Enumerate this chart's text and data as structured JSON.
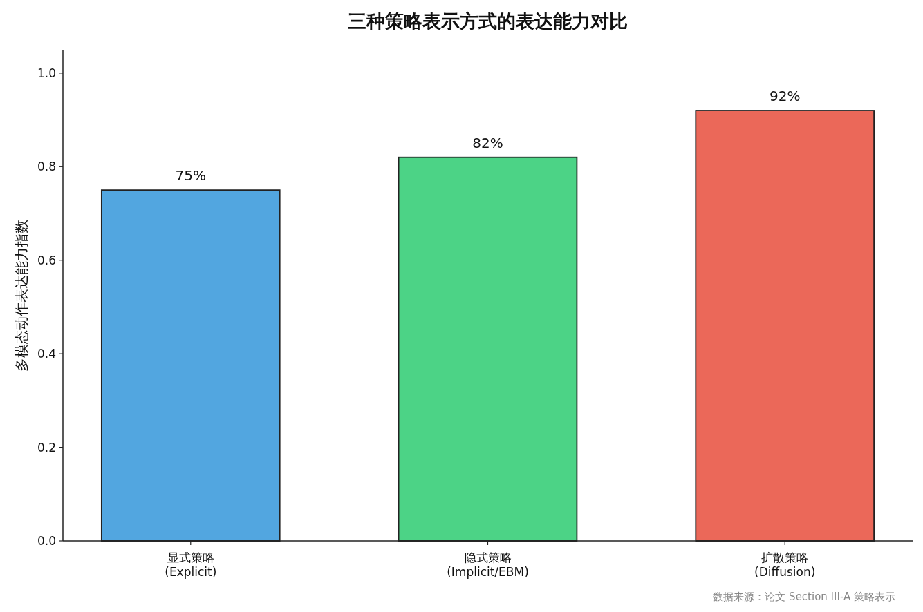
{
  "chart_data": {
    "type": "bar",
    "title": "三种策略表示方式的表达能力对比",
    "ylabel": "多模态动作表达能力指数",
    "categories": [
      "显式策略\n(Explicit)",
      "隐式策略\n(Implicit/EBM)",
      "扩散策略\n(Diffusion)"
    ],
    "values": [
      0.75,
      0.82,
      0.92
    ],
    "colors": [
      "#52a6e0",
      "#4cd386",
      "#eb6859"
    ],
    "value_labels": [
      "75%",
      "82%",
      "92%"
    ],
    "ylim": [
      0,
      1.05
    ],
    "yticks": [
      {
        "value": 0,
        "label": "0.0"
      },
      {
        "value": 0.2,
        "label": "0.2"
      },
      {
        "value": 0.4,
        "label": "0.4"
      },
      {
        "value": 0.6,
        "label": "0.6"
      },
      {
        "value": 0.8,
        "label": "0.8"
      },
      {
        "value": 1,
        "label": "1.0"
      }
    ],
    "grid": false,
    "annotations": [
      "数据来源：论文 Section III-A 策略表示"
    ]
  }
}
